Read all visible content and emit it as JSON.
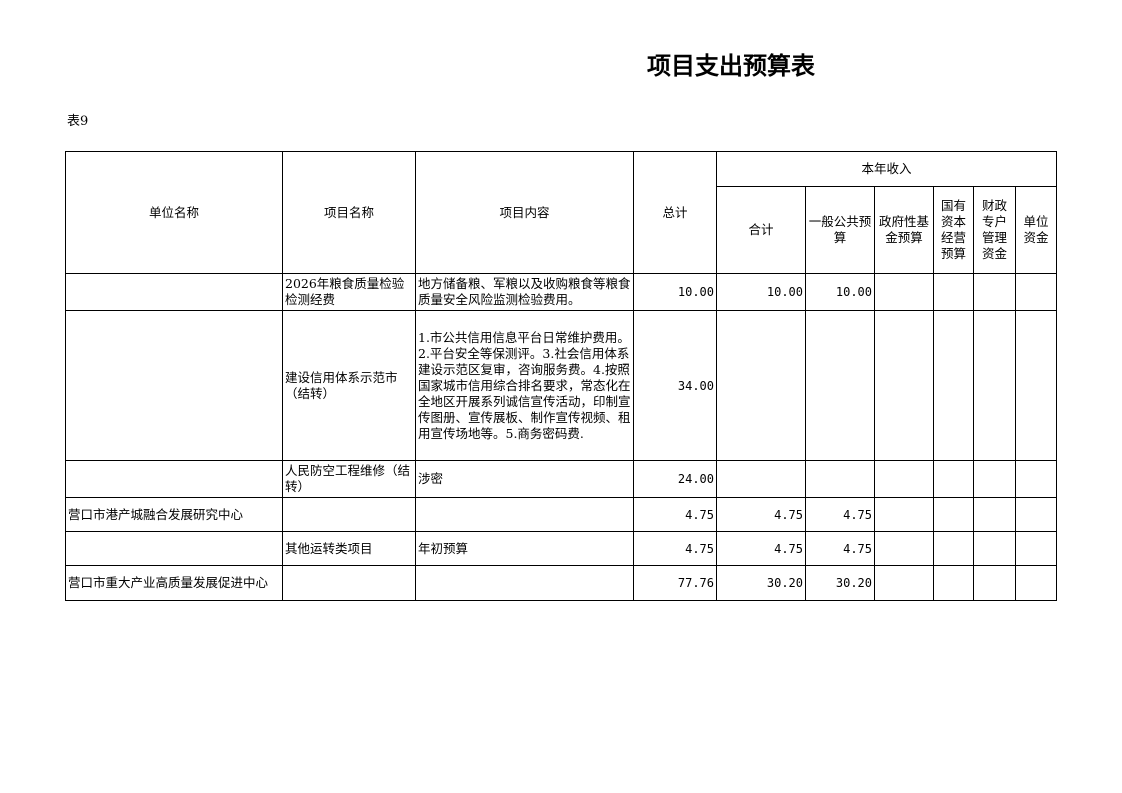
{
  "title": "项目支出预算表",
  "table_no": "表9",
  "headers": {
    "unit": "单位名称",
    "project": "项目名称",
    "content": "项目内容",
    "total": "总计",
    "income": "本年收入",
    "sub": [
      "合计",
      "一般公共预算",
      "政府性基金预算",
      "国有资本经营预算",
      "财政专户管理资金",
      "单位资金"
    ]
  },
  "rows": [
    {
      "unit": "",
      "project": "2026年粮食质量检验检测经费",
      "content": "地方储备粮、军粮以及收购粮食等粮食质量安全风险监测检验费用。",
      "total": "10.00",
      "sum": "10.00",
      "general": "10.00",
      "fund": "",
      "state": "",
      "special": "",
      "own": ""
    },
    {
      "unit": "",
      "project": "建设信用体系示范市（结转）",
      "content": "1.市公共信用信息平台日常维护费用。2.平台安全等保测评。3.社会信用体系建设示范区复审，咨询服务费。4.按照国家城市信用综合排名要求，常态化在全地区开展系列诚信宣传活动，印制宣传图册、宣传展板、制作宣传视频、租用宣传场地等。5.商务密码费.",
      "total": "34.00",
      "sum": "",
      "general": "",
      "fund": "",
      "state": "",
      "special": "",
      "own": ""
    },
    {
      "unit": "",
      "project": "人民防空工程维修（结转）",
      "content": "涉密",
      "total": "24.00",
      "sum": "",
      "general": "",
      "fund": "",
      "state": "",
      "special": "",
      "own": ""
    },
    {
      "unit": "营口市港产城融合发展研究中心",
      "project": "",
      "content": "",
      "total": "4.75",
      "sum": "4.75",
      "general": "4.75",
      "fund": "",
      "state": "",
      "special": "",
      "own": ""
    },
    {
      "unit": "",
      "project": "其他运转类项目",
      "content": "年初预算",
      "total": "4.75",
      "sum": "4.75",
      "general": "4.75",
      "fund": "",
      "state": "",
      "special": "",
      "own": ""
    },
    {
      "unit": "营口市重大产业高质量发展促进中心",
      "project": "",
      "content": "",
      "total": "77.76",
      "sum": "30.20",
      "general": "30.20",
      "fund": "",
      "state": "",
      "special": "",
      "own": ""
    }
  ]
}
